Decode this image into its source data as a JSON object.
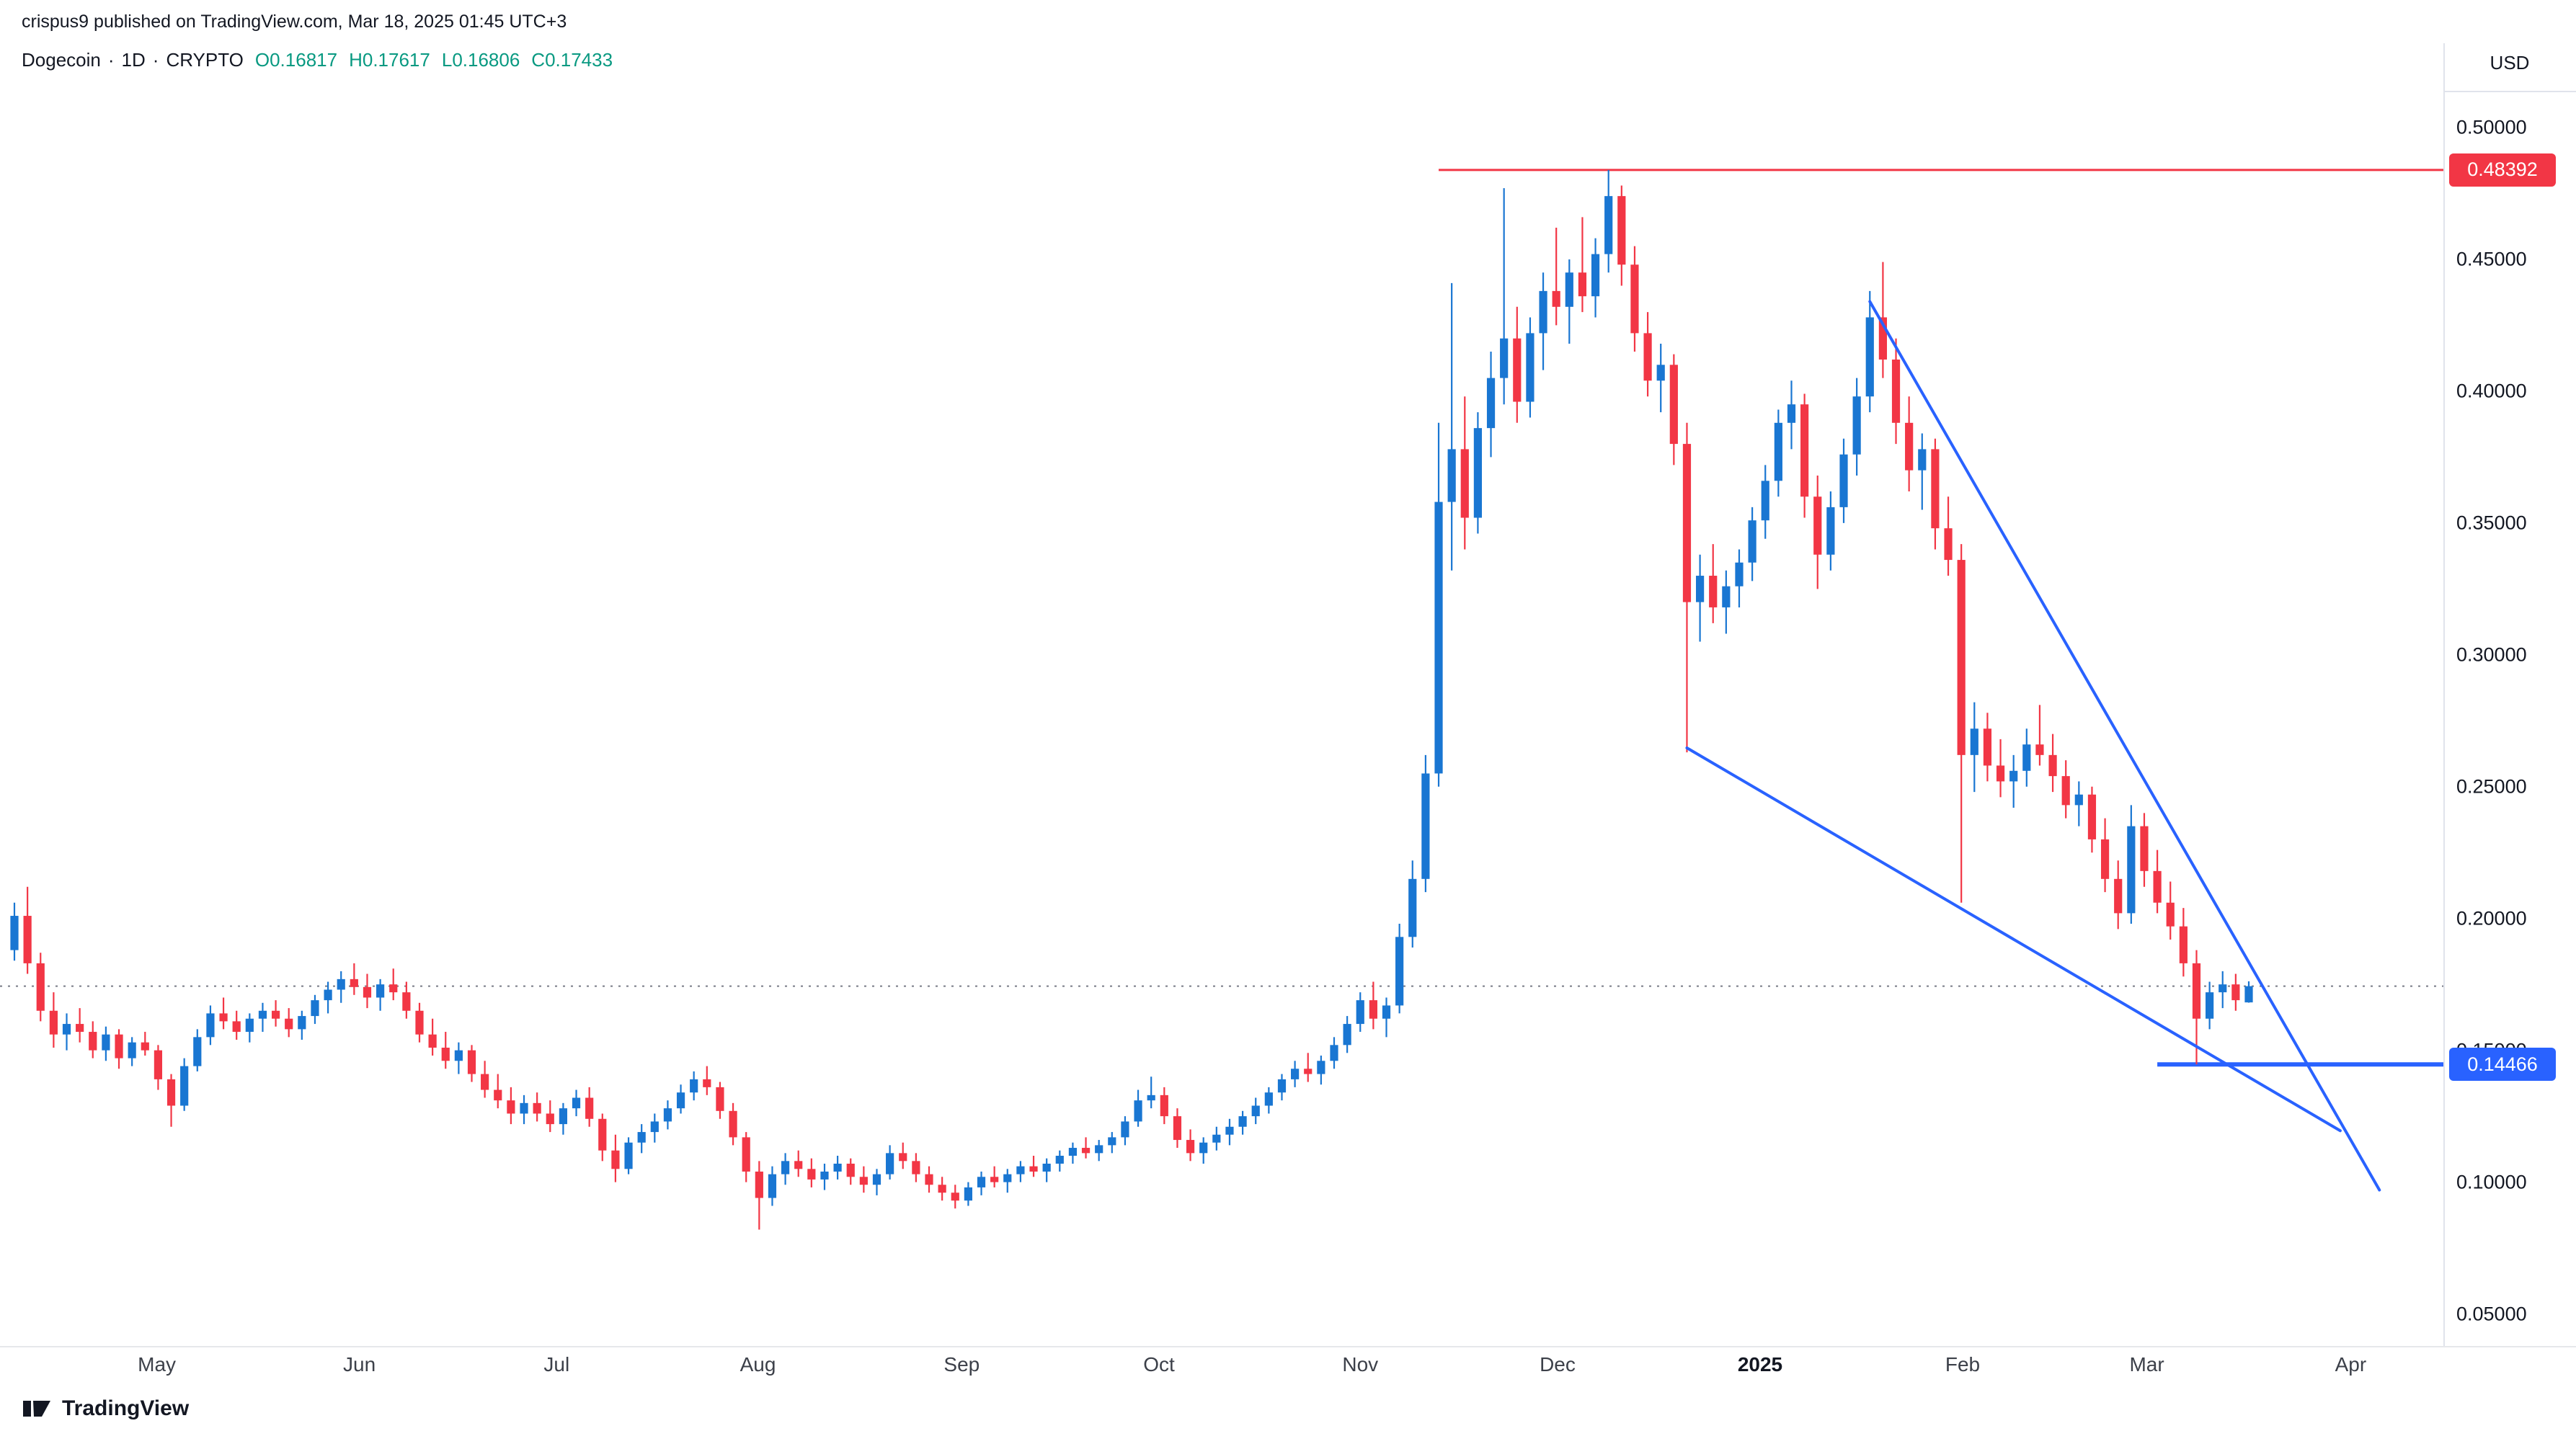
{
  "header": {
    "attribution": "crispus9 published on TradingView.com, Mar 18, 2025 01:45 UTC+3",
    "symbol": {
      "name": "Dogecoin",
      "separator": "·",
      "interval": "1D",
      "exchange": "CRYPTO",
      "ohlc": [
        {
          "k": "O",
          "v": "0.16817"
        },
        {
          "k": "H",
          "v": "0.17617"
        },
        {
          "k": "L",
          "v": "0.16806"
        },
        {
          "k": "C",
          "v": "0.17433"
        }
      ]
    }
  },
  "price_scale": {
    "currency": "USD",
    "ticks": [
      "0.50000",
      "0.45000",
      "0.40000",
      "0.35000",
      "0.30000",
      "0.25000",
      "0.20000",
      "0.15000",
      "0.10000",
      "0.05000"
    ]
  },
  "time_scale": {
    "ticks": [
      {
        "label": "May",
        "i": 10.9
      },
      {
        "label": "Jun",
        "i": 26.4
      },
      {
        "label": "Jul",
        "i": 41.5
      },
      {
        "label": "Aug",
        "i": 56.9
      },
      {
        "label": "Sep",
        "i": 72.5
      },
      {
        "label": "Oct",
        "i": 87.6
      },
      {
        "label": "Nov",
        "i": 103.0
      },
      {
        "label": "Dec",
        "i": 118.1
      },
      {
        "label": "2025",
        "i": 133.6,
        "bold": true
      },
      {
        "label": "Feb",
        "i": 149.1
      },
      {
        "label": "Mar",
        "i": 163.2
      },
      {
        "label": "Apr",
        "i": 178.8
      }
    ]
  },
  "footer": {
    "brand": "TradingView"
  },
  "chart_data": {
    "type": "candlestick",
    "title": "Dogecoin 1D CRYPTO",
    "currency": "USD",
    "ylim": [
      0.05,
      0.5
    ],
    "grid": false,
    "up_color": "#1976d2",
    "down_color": "#f23645",
    "trendline_color": "#2962ff",
    "last_close": 0.17433,
    "candles": [
      [
        0.188,
        0.206,
        0.184,
        0.201
      ],
      [
        0.201,
        0.212,
        0.179,
        0.183
      ],
      [
        0.183,
        0.187,
        0.161,
        0.165
      ],
      [
        0.165,
        0.172,
        0.151,
        0.156
      ],
      [
        0.156,
        0.164,
        0.15,
        0.16
      ],
      [
        0.16,
        0.166,
        0.153,
        0.157
      ],
      [
        0.157,
        0.161,
        0.147,
        0.15
      ],
      [
        0.15,
        0.159,
        0.146,
        0.156
      ],
      [
        0.156,
        0.158,
        0.143,
        0.147
      ],
      [
        0.147,
        0.155,
        0.144,
        0.153
      ],
      [
        0.153,
        0.157,
        0.148,
        0.15
      ],
      [
        0.15,
        0.152,
        0.135,
        0.139
      ],
      [
        0.139,
        0.141,
        0.121,
        0.129
      ],
      [
        0.129,
        0.147,
        0.127,
        0.144
      ],
      [
        0.144,
        0.158,
        0.142,
        0.155
      ],
      [
        0.155,
        0.167,
        0.152,
        0.164
      ],
      [
        0.164,
        0.17,
        0.158,
        0.161
      ],
      [
        0.161,
        0.165,
        0.154,
        0.157
      ],
      [
        0.157,
        0.164,
        0.153,
        0.162
      ],
      [
        0.162,
        0.168,
        0.157,
        0.165
      ],
      [
        0.165,
        0.169,
        0.159,
        0.162
      ],
      [
        0.162,
        0.166,
        0.155,
        0.158
      ],
      [
        0.158,
        0.165,
        0.154,
        0.163
      ],
      [
        0.163,
        0.171,
        0.16,
        0.169
      ],
      [
        0.169,
        0.176,
        0.164,
        0.173
      ],
      [
        0.173,
        0.18,
        0.168,
        0.177
      ],
      [
        0.177,
        0.183,
        0.171,
        0.174
      ],
      [
        0.174,
        0.179,
        0.166,
        0.17
      ],
      [
        0.17,
        0.177,
        0.165,
        0.175
      ],
      [
        0.175,
        0.181,
        0.169,
        0.172
      ],
      [
        0.172,
        0.176,
        0.162,
        0.165
      ],
      [
        0.165,
        0.168,
        0.153,
        0.156
      ],
      [
        0.156,
        0.162,
        0.148,
        0.151
      ],
      [
        0.151,
        0.157,
        0.143,
        0.146
      ],
      [
        0.146,
        0.153,
        0.141,
        0.15
      ],
      [
        0.15,
        0.152,
        0.138,
        0.141
      ],
      [
        0.141,
        0.146,
        0.132,
        0.135
      ],
      [
        0.135,
        0.141,
        0.128,
        0.131
      ],
      [
        0.131,
        0.136,
        0.122,
        0.126
      ],
      [
        0.126,
        0.133,
        0.122,
        0.13
      ],
      [
        0.13,
        0.134,
        0.123,
        0.126
      ],
      [
        0.126,
        0.131,
        0.119,
        0.122
      ],
      [
        0.122,
        0.13,
        0.118,
        0.128
      ],
      [
        0.128,
        0.135,
        0.125,
        0.132
      ],
      [
        0.132,
        0.136,
        0.121,
        0.124
      ],
      [
        0.124,
        0.126,
        0.108,
        0.112
      ],
      [
        0.112,
        0.118,
        0.1,
        0.105
      ],
      [
        0.105,
        0.117,
        0.103,
        0.115
      ],
      [
        0.115,
        0.122,
        0.111,
        0.119
      ],
      [
        0.119,
        0.126,
        0.115,
        0.123
      ],
      [
        0.123,
        0.131,
        0.12,
        0.128
      ],
      [
        0.128,
        0.137,
        0.126,
        0.134
      ],
      [
        0.134,
        0.142,
        0.131,
        0.139
      ],
      [
        0.139,
        0.144,
        0.133,
        0.136
      ],
      [
        0.136,
        0.138,
        0.124,
        0.127
      ],
      [
        0.127,
        0.13,
        0.114,
        0.117
      ],
      [
        0.117,
        0.119,
        0.1,
        0.104
      ],
      [
        0.104,
        0.108,
        0.082,
        0.094
      ],
      [
        0.094,
        0.106,
        0.091,
        0.103
      ],
      [
        0.103,
        0.111,
        0.099,
        0.108
      ],
      [
        0.108,
        0.112,
        0.102,
        0.105
      ],
      [
        0.105,
        0.109,
        0.098,
        0.101
      ],
      [
        0.101,
        0.107,
        0.097,
        0.104
      ],
      [
        0.104,
        0.11,
        0.101,
        0.107
      ],
      [
        0.107,
        0.109,
        0.099,
        0.102
      ],
      [
        0.102,
        0.106,
        0.096,
        0.099
      ],
      [
        0.099,
        0.105,
        0.095,
        0.103
      ],
      [
        0.103,
        0.114,
        0.101,
        0.111
      ],
      [
        0.111,
        0.115,
        0.105,
        0.108
      ],
      [
        0.108,
        0.111,
        0.1,
        0.103
      ],
      [
        0.103,
        0.106,
        0.096,
        0.099
      ],
      [
        0.099,
        0.102,
        0.093,
        0.096
      ],
      [
        0.096,
        0.099,
        0.09,
        0.093
      ],
      [
        0.093,
        0.1,
        0.091,
        0.098
      ],
      [
        0.098,
        0.104,
        0.095,
        0.102
      ],
      [
        0.102,
        0.106,
        0.098,
        0.1
      ],
      [
        0.1,
        0.105,
        0.096,
        0.103
      ],
      [
        0.103,
        0.108,
        0.1,
        0.106
      ],
      [
        0.106,
        0.11,
        0.102,
        0.104
      ],
      [
        0.104,
        0.109,
        0.1,
        0.107
      ],
      [
        0.107,
        0.112,
        0.104,
        0.11
      ],
      [
        0.11,
        0.115,
        0.107,
        0.113
      ],
      [
        0.113,
        0.117,
        0.109,
        0.111
      ],
      [
        0.111,
        0.116,
        0.108,
        0.114
      ],
      [
        0.114,
        0.119,
        0.111,
        0.117
      ],
      [
        0.117,
        0.125,
        0.114,
        0.123
      ],
      [
        0.123,
        0.135,
        0.121,
        0.131
      ],
      [
        0.131,
        0.14,
        0.128,
        0.133
      ],
      [
        0.133,
        0.136,
        0.122,
        0.125
      ],
      [
        0.125,
        0.128,
        0.113,
        0.116
      ],
      [
        0.116,
        0.12,
        0.108,
        0.111
      ],
      [
        0.111,
        0.117,
        0.107,
        0.115
      ],
      [
        0.115,
        0.121,
        0.112,
        0.118
      ],
      [
        0.118,
        0.124,
        0.114,
        0.121
      ],
      [
        0.121,
        0.127,
        0.118,
        0.125
      ],
      [
        0.125,
        0.132,
        0.122,
        0.129
      ],
      [
        0.129,
        0.136,
        0.126,
        0.134
      ],
      [
        0.134,
        0.141,
        0.131,
        0.139
      ],
      [
        0.139,
        0.146,
        0.136,
        0.143
      ],
      [
        0.143,
        0.149,
        0.138,
        0.141
      ],
      [
        0.141,
        0.148,
        0.137,
        0.146
      ],
      [
        0.146,
        0.155,
        0.143,
        0.152
      ],
      [
        0.152,
        0.163,
        0.149,
        0.16
      ],
      [
        0.16,
        0.172,
        0.157,
        0.169
      ],
      [
        0.169,
        0.176,
        0.158,
        0.162
      ],
      [
        0.162,
        0.17,
        0.155,
        0.167
      ],
      [
        0.167,
        0.198,
        0.164,
        0.193
      ],
      [
        0.193,
        0.222,
        0.189,
        0.215
      ],
      [
        0.215,
        0.262,
        0.21,
        0.255
      ],
      [
        0.255,
        0.388,
        0.25,
        0.358
      ],
      [
        0.358,
        0.441,
        0.332,
        0.378
      ],
      [
        0.378,
        0.398,
        0.34,
        0.352
      ],
      [
        0.352,
        0.392,
        0.346,
        0.386
      ],
      [
        0.386,
        0.415,
        0.375,
        0.405
      ],
      [
        0.405,
        0.477,
        0.395,
        0.42
      ],
      [
        0.42,
        0.432,
        0.388,
        0.396
      ],
      [
        0.396,
        0.428,
        0.39,
        0.422
      ],
      [
        0.422,
        0.445,
        0.408,
        0.438
      ],
      [
        0.438,
        0.462,
        0.425,
        0.432
      ],
      [
        0.432,
        0.45,
        0.418,
        0.445
      ],
      [
        0.445,
        0.466,
        0.43,
        0.436
      ],
      [
        0.436,
        0.458,
        0.428,
        0.452
      ],
      [
        0.452,
        0.48392,
        0.445,
        0.474
      ],
      [
        0.474,
        0.478,
        0.44,
        0.448
      ],
      [
        0.448,
        0.455,
        0.415,
        0.422
      ],
      [
        0.422,
        0.43,
        0.398,
        0.404
      ],
      [
        0.404,
        0.418,
        0.392,
        0.41
      ],
      [
        0.41,
        0.414,
        0.372,
        0.38
      ],
      [
        0.38,
        0.388,
        0.263,
        0.32
      ],
      [
        0.32,
        0.338,
        0.305,
        0.33
      ],
      [
        0.33,
        0.342,
        0.312,
        0.318
      ],
      [
        0.318,
        0.332,
        0.308,
        0.326
      ],
      [
        0.326,
        0.34,
        0.318,
        0.335
      ],
      [
        0.335,
        0.356,
        0.328,
        0.351
      ],
      [
        0.351,
        0.372,
        0.344,
        0.366
      ],
      [
        0.366,
        0.393,
        0.36,
        0.388
      ],
      [
        0.388,
        0.404,
        0.378,
        0.395
      ],
      [
        0.395,
        0.399,
        0.352,
        0.36
      ],
      [
        0.36,
        0.368,
        0.325,
        0.338
      ],
      [
        0.338,
        0.362,
        0.332,
        0.356
      ],
      [
        0.356,
        0.382,
        0.35,
        0.376
      ],
      [
        0.376,
        0.405,
        0.368,
        0.398
      ],
      [
        0.398,
        0.438,
        0.392,
        0.428
      ],
      [
        0.428,
        0.449,
        0.405,
        0.412
      ],
      [
        0.412,
        0.42,
        0.38,
        0.388
      ],
      [
        0.388,
        0.398,
        0.362,
        0.37
      ],
      [
        0.37,
        0.384,
        0.355,
        0.378
      ],
      [
        0.378,
        0.382,
        0.34,
        0.348
      ],
      [
        0.348,
        0.36,
        0.33,
        0.336
      ],
      [
        0.336,
        0.342,
        0.206,
        0.262
      ],
      [
        0.262,
        0.282,
        0.248,
        0.272
      ],
      [
        0.272,
        0.278,
        0.252,
        0.258
      ],
      [
        0.258,
        0.268,
        0.246,
        0.252
      ],
      [
        0.252,
        0.262,
        0.242,
        0.256
      ],
      [
        0.256,
        0.272,
        0.25,
        0.266
      ],
      [
        0.266,
        0.281,
        0.258,
        0.262
      ],
      [
        0.262,
        0.27,
        0.248,
        0.254
      ],
      [
        0.254,
        0.26,
        0.238,
        0.243
      ],
      [
        0.243,
        0.252,
        0.235,
        0.247
      ],
      [
        0.247,
        0.25,
        0.225,
        0.23
      ],
      [
        0.23,
        0.238,
        0.21,
        0.215
      ],
      [
        0.215,
        0.222,
        0.196,
        0.202
      ],
      [
        0.202,
        0.243,
        0.198,
        0.235
      ],
      [
        0.235,
        0.24,
        0.212,
        0.218
      ],
      [
        0.218,
        0.226,
        0.202,
        0.206
      ],
      [
        0.206,
        0.214,
        0.192,
        0.197
      ],
      [
        0.197,
        0.204,
        0.178,
        0.183
      ],
      [
        0.183,
        0.188,
        0.14466,
        0.162
      ],
      [
        0.162,
        0.176,
        0.158,
        0.172
      ],
      [
        0.172,
        0.18,
        0.166,
        0.175
      ],
      [
        0.175,
        0.179,
        0.165,
        0.169
      ],
      [
        0.16817,
        0.17617,
        0.16806,
        0.17433
      ]
    ],
    "levels": [
      {
        "name": "resistance",
        "price": 0.48392,
        "label": "0.48392",
        "color": "#f23645",
        "style": "solid",
        "width": 3,
        "from_i": 109,
        "badge": true
      },
      {
        "name": "support",
        "price": 0.14466,
        "label": "0.14466",
        "color": "#2962ff",
        "style": "solid",
        "width": 6,
        "from_i": 164,
        "badge": true
      },
      {
        "name": "last-price",
        "price": 0.17433,
        "label": "0.17433",
        "color": "#787b86",
        "style": "dotted",
        "width": 2,
        "from_i": null,
        "badge": false
      }
    ],
    "trendlines": [
      {
        "name": "falling-wedge-upper",
        "from": {
          "i": 142,
          "p": 0.434
        },
        "to": {
          "i": 181,
          "p": 0.097
        }
      },
      {
        "name": "falling-wedge-lower",
        "from": {
          "i": 128,
          "p": 0.2647
        },
        "to": {
          "i": 178,
          "p": 0.1195
        }
      }
    ]
  }
}
